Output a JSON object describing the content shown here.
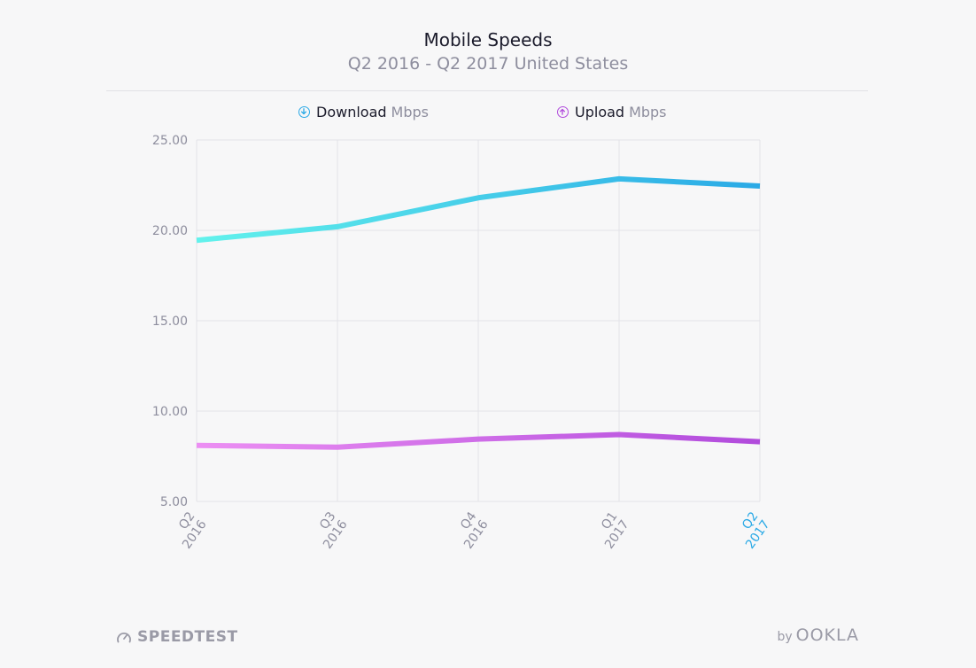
{
  "chart_data": {
    "type": "line",
    "title": "Mobile Speeds",
    "subtitle": "Q2 2016 - Q2 2017 United States",
    "categories": [
      {
        "line1": "Q2",
        "line2": "2016"
      },
      {
        "line1": "Q3",
        "line2": "2016"
      },
      {
        "line1": "Q4",
        "line2": "2016"
      },
      {
        "line1": "Q1",
        "line2": "2017"
      },
      {
        "line1": "Q2",
        "line2": "2017"
      }
    ],
    "highlight_category_index": 4,
    "y_ticks": [
      "25.00",
      "20.00",
      "15.00",
      "10.00",
      "5.00"
    ],
    "ylim": [
      5,
      25
    ],
    "grid": true,
    "legend_placement": "top-center",
    "series": [
      {
        "name": "Download",
        "unit": "Mbps",
        "values": [
          19.45,
          20.2,
          21.8,
          22.85,
          22.45
        ],
        "color_start": "#62f2ec",
        "color_end": "#2aa9e6"
      },
      {
        "name": "Upload",
        "unit": "Mbps",
        "values": [
          8.1,
          8.0,
          8.45,
          8.7,
          8.3
        ],
        "color_start": "#ec8ff3",
        "color_end": "#b14bdc"
      }
    ],
    "colors": {
      "download_icon": "#2aa9e6",
      "upload_icon": "#b14bdc",
      "highlight_tick": "#2aa9e6",
      "grid": "#e3e3e8",
      "tick_text": "#8e8e9e"
    }
  },
  "footer": {
    "brand_left": "SPEEDTEST",
    "brand_left_icon": "speedometer-icon",
    "brand_right_prefix": "by",
    "brand_right": "OOKLA"
  }
}
